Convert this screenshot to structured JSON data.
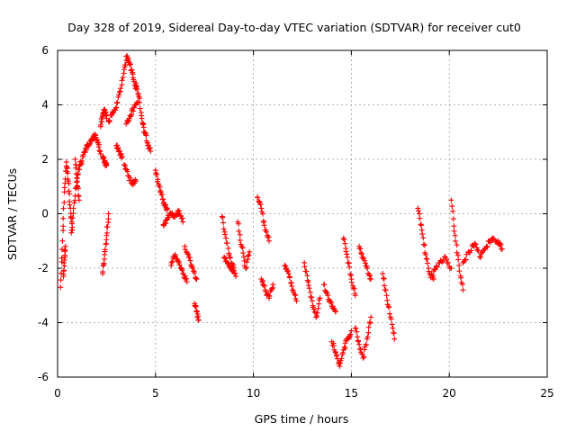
{
  "chart_data": {
    "type": "scatter",
    "title": "Day 328 of 2019, Sidereal Day-to-day VTEC variation (SDTVAR) for receiver cut0",
    "xlabel": "GPS time / hours",
    "ylabel": "SDTVAR / TECUs",
    "xlim": [
      0,
      25
    ],
    "ylim": [
      -6,
      6
    ],
    "xticks": [
      0,
      5,
      10,
      15,
      20,
      25
    ],
    "yticks": [
      -6,
      -4,
      -2,
      0,
      2,
      4,
      6
    ],
    "grid": true,
    "marker": "+",
    "color": "#ff0000",
    "segments": [
      {
        "x": [
          0.15,
          0.25,
          0.35,
          0.45,
          0.55,
          0.65,
          0.75
        ],
        "y": [
          -2.7,
          -1.0,
          0.8,
          1.9,
          1.2,
          0.2,
          -0.6
        ]
      },
      {
        "x": [
          0.3,
          0.35,
          0.4
        ],
        "y": [
          -2.3,
          -1.7,
          -1.2
        ]
      },
      {
        "x": [
          0.7,
          0.85,
          1.0,
          1.15,
          1.3,
          1.45,
          1.6,
          1.75,
          1.9,
          2.05,
          2.2
        ],
        "y": [
          -0.7,
          0.4,
          1.3,
          1.8,
          2.1,
          2.4,
          2.5,
          2.7,
          2.9,
          2.6,
          2.2
        ]
      },
      {
        "x": [
          0.9,
          1.0,
          1.1
        ],
        "y": [
          2.0,
          1.2,
          0.5
        ]
      },
      {
        "x": [
          2.2,
          2.3,
          2.4,
          2.5
        ],
        "y": [
          3.2,
          3.6,
          3.8,
          3.5
        ]
      },
      {
        "x": [
          2.3,
          2.4,
          2.5
        ],
        "y": [
          2.1,
          1.9,
          1.8
        ]
      },
      {
        "x": [
          2.3,
          2.4,
          2.5,
          2.6
        ],
        "y": [
          -2.2,
          -1.5,
          -0.8,
          0.0
        ]
      },
      {
        "x": [
          2.6,
          2.8,
          3.0,
          3.2,
          3.4,
          3.55,
          3.7,
          3.85,
          4.0
        ],
        "y": [
          3.4,
          3.7,
          3.9,
          4.5,
          5.3,
          5.8,
          5.5,
          5.0,
          4.6
        ]
      },
      {
        "x": [
          3.0,
          3.15,
          3.3
        ],
        "y": [
          2.5,
          2.3,
          2.1
        ]
      },
      {
        "x": [
          3.4,
          3.6,
          3.8,
          4.0
        ],
        "y": [
          1.8,
          1.4,
          1.1,
          1.2
        ]
      },
      {
        "x": [
          3.5,
          3.7,
          3.9,
          4.1
        ],
        "y": [
          3.3,
          3.6,
          3.9,
          4.1
        ]
      },
      {
        "x": [
          4.0,
          4.15,
          4.3,
          4.45,
          4.6,
          4.75
        ],
        "y": [
          4.8,
          4.3,
          3.5,
          3.0,
          2.6,
          2.3
        ]
      },
      {
        "x": [
          5.0,
          5.15,
          5.3,
          5.45,
          5.6
        ],
        "y": [
          1.6,
          1.1,
          0.7,
          0.3,
          0.2
        ]
      },
      {
        "x": [
          5.4,
          5.6,
          5.8,
          6.0,
          6.2,
          6.4
        ],
        "y": [
          -0.4,
          -0.2,
          0.0,
          -0.1,
          0.1,
          -0.3
        ]
      },
      {
        "x": [
          5.8,
          6.0,
          6.2,
          6.4,
          6.6
        ],
        "y": [
          -1.9,
          -1.5,
          -1.8,
          -2.2,
          -2.5
        ]
      },
      {
        "x": [
          6.5,
          6.7,
          6.9,
          7.1
        ],
        "y": [
          -1.2,
          -1.6,
          -2.0,
          -2.4
        ]
      },
      {
        "x": [
          7.0,
          7.1,
          7.2
        ],
        "y": [
          -3.3,
          -3.6,
          -3.9
        ]
      },
      {
        "x": [
          8.4,
          8.6,
          8.8,
          9.0
        ],
        "y": [
          -0.1,
          -0.9,
          -1.6,
          -2.0
        ]
      },
      {
        "x": [
          8.5,
          8.7,
          8.9,
          9.1
        ],
        "y": [
          -1.6,
          -1.8,
          -2.1,
          -2.3
        ]
      },
      {
        "x": [
          9.2,
          9.4,
          9.6,
          9.8
        ],
        "y": [
          -0.3,
          -1.2,
          -2.0,
          -1.4
        ]
      },
      {
        "x": [
          10.2,
          10.4,
          10.6,
          10.8
        ],
        "y": [
          0.6,
          0.2,
          -0.6,
          -1.0
        ]
      },
      {
        "x": [
          10.4,
          10.6,
          10.8,
          11.0
        ],
        "y": [
          -2.4,
          -2.8,
          -3.1,
          -2.6
        ]
      },
      {
        "x": [
          11.6,
          11.8,
          12.0,
          12.2
        ],
        "y": [
          -1.9,
          -2.2,
          -2.8,
          -3.2
        ]
      },
      {
        "x": [
          12.6,
          12.8,
          13.0,
          13.2,
          13.4
        ],
        "y": [
          -1.8,
          -2.5,
          -3.2,
          -3.8,
          -3.1
        ]
      },
      {
        "x": [
          13.6,
          13.8,
          14.0,
          14.2
        ],
        "y": [
          -2.6,
          -3.0,
          -3.4,
          -3.6
        ]
      },
      {
        "x": [
          14.0,
          14.2,
          14.4,
          14.6,
          14.8,
          15.0
        ],
        "y": [
          -4.7,
          -5.1,
          -5.6,
          -5.0,
          -4.6,
          -4.3
        ]
      },
      {
        "x": [
          14.6,
          14.8,
          15.0,
          15.2
        ],
        "y": [
          -0.9,
          -1.6,
          -2.4,
          -3.0
        ]
      },
      {
        "x": [
          15.2,
          15.4,
          15.6,
          15.8,
          16.0
        ],
        "y": [
          -4.2,
          -4.8,
          -5.3,
          -4.6,
          -3.8
        ]
      },
      {
        "x": [
          15.4,
          15.6,
          15.8,
          16.0
        ],
        "y": [
          -1.2,
          -1.6,
          -2.0,
          -2.4
        ]
      },
      {
        "x": [
          16.6,
          16.8,
          17.0,
          17.2
        ],
        "y": [
          -2.2,
          -3.0,
          -3.8,
          -4.6
        ]
      },
      {
        "x": [
          18.4,
          18.6,
          18.8,
          19.0,
          19.2
        ],
        "y": [
          0.2,
          -0.6,
          -1.5,
          -2.2,
          -2.4
        ]
      },
      {
        "x": [
          19.2,
          19.5,
          19.8,
          20.1
        ],
        "y": [
          -2.1,
          -1.8,
          -1.6,
          -2.0
        ]
      },
      {
        "x": [
          20.1,
          20.3,
          20.5,
          20.7
        ],
        "y": [
          0.5,
          -0.8,
          -1.9,
          -2.8
        ]
      },
      {
        "x": [
          20.7,
          21.0,
          21.3,
          21.6,
          21.9,
          22.2,
          22.5,
          22.7
        ],
        "y": [
          -1.8,
          -1.4,
          -1.1,
          -1.6,
          -1.2,
          -0.9,
          -1.0,
          -1.3
        ]
      }
    ]
  }
}
